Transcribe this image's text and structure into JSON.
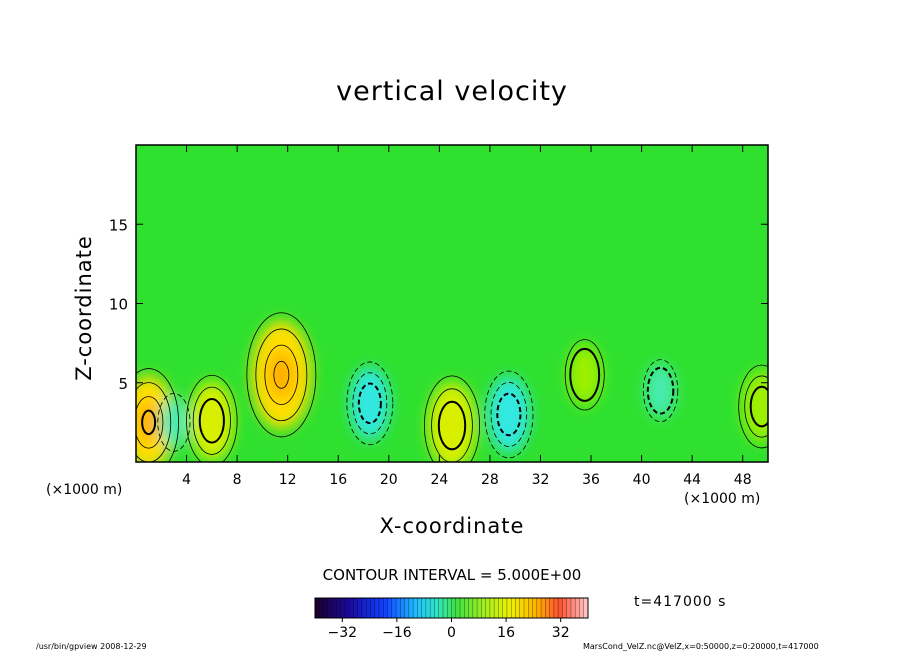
{
  "chart_data": {
    "type": "heatmap",
    "title": "vertical velocity",
    "xlabel": "X-coordinate",
    "ylabel": "Z-coordinate",
    "x_unit_left": "(×1000 m)",
    "x_unit_right": "(×1000 m)",
    "xlim": [
      0,
      50
    ],
    "ylim": [
      0,
      20
    ],
    "x_ticks": [
      4,
      8,
      12,
      16,
      20,
      24,
      28,
      32,
      36,
      40,
      44,
      48
    ],
    "y_ticks": [
      5,
      10,
      15
    ],
    "contour_interval_label": "CONTOUR INTERVAL = 5.000E+00",
    "colorbar": {
      "range": [
        -40,
        40
      ],
      "ticks": [
        -32,
        -16,
        0,
        16,
        32
      ]
    },
    "time_label": "t=417000 s",
    "features": [
      {
        "x": 1.0,
        "z": 2.5,
        "value": 16
      },
      {
        "x": 6.0,
        "z": 2.6,
        "value": 12
      },
      {
        "x": 11.5,
        "z": 5.5,
        "value": 20
      },
      {
        "x": 18.5,
        "z": 3.7,
        "value": -10
      },
      {
        "x": 25.0,
        "z": 2.3,
        "value": 14
      },
      {
        "x": 29.5,
        "z": 3.0,
        "value": -11
      },
      {
        "x": 35.5,
        "z": 5.5,
        "value": 7
      },
      {
        "x": 41.5,
        "z": 4.5,
        "value": -5
      },
      {
        "x": 49.5,
        "z": 3.5,
        "value": 10
      },
      {
        "x": 3.0,
        "z": 2.5,
        "value": -4
      }
    ]
  },
  "footer": {
    "left": "/usr/bin/gpview   2008-12-29",
    "right": "MarsCond_VelZ.nc@VelZ,x=0:50000,z=0:20000,t=417000"
  },
  "colors": {
    "background_field": "#2fe02f",
    "positive": "#f2f200",
    "negative": "#33e0c8"
  }
}
